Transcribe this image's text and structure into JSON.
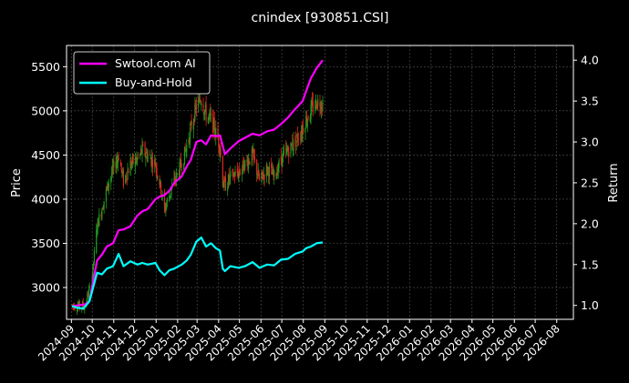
{
  "chart_data": {
    "type": "line",
    "title": "cnindex [930851.CSI]",
    "ylabel_left": "Price",
    "ylabel_right": "Return",
    "ylim_left": [
      2640,
      5740
    ],
    "ylim_right": [
      0.83,
      4.18
    ],
    "yticks_left": [
      3000,
      3500,
      4000,
      4500,
      5000,
      5500
    ],
    "yticks_right": [
      1.0,
      1.5,
      2.0,
      2.5,
      3.0,
      3.5,
      4.0
    ],
    "x_ticks": [
      "2024-09",
      "2024-10",
      "2024-11",
      "2024-12",
      "2025-01",
      "2025-02",
      "2025-03",
      "2025-04",
      "2025-05",
      "2025-06",
      "2025-07",
      "2025-08",
      "2025-09",
      "2025-10",
      "2025-11",
      "2025-12",
      "2026-01",
      "2026-02",
      "2026-03",
      "2026-04",
      "2026-05",
      "2026-06",
      "2026-07",
      "2026-08"
    ],
    "grid": true,
    "legend_position": "top-left",
    "background": "#000000",
    "up_color": "#1f9a1f",
    "down_color": "#e0281e",
    "series": [
      {
        "name": "Swtool.com AI",
        "color": "#ff00ff",
        "axis": "right",
        "points": [
          [
            "2024-09-02",
            0.99
          ],
          [
            "2024-09-10",
            1.0
          ],
          [
            "2024-09-20",
            1.01
          ],
          [
            "2024-09-27",
            1.05
          ],
          [
            "2024-10-08",
            1.55
          ],
          [
            "2024-10-15",
            1.62
          ],
          [
            "2024-10-22",
            1.72
          ],
          [
            "2024-10-31",
            1.76
          ],
          [
            "2024-11-08",
            1.92
          ],
          [
            "2024-11-15",
            1.93
          ],
          [
            "2024-11-25",
            1.97
          ],
          [
            "2024-12-05",
            2.1
          ],
          [
            "2024-12-12",
            2.15
          ],
          [
            "2024-12-20",
            2.18
          ],
          [
            "2024-12-31",
            2.3
          ],
          [
            "2025-01-06",
            2.33
          ],
          [
            "2025-01-13",
            2.35
          ],
          [
            "2025-01-20",
            2.4
          ],
          [
            "2025-01-27",
            2.5
          ],
          [
            "2025-02-07",
            2.58
          ],
          [
            "2025-02-14",
            2.7
          ],
          [
            "2025-02-20",
            2.78
          ],
          [
            "2025-02-28",
            3.0
          ],
          [
            "2025-03-07",
            3.02
          ],
          [
            "2025-03-14",
            2.97
          ],
          [
            "2025-03-21",
            3.08
          ],
          [
            "2025-03-28",
            3.07
          ],
          [
            "2025-04-03",
            3.08
          ],
          [
            "2025-04-07",
            2.95
          ],
          [
            "2025-04-10",
            2.85
          ],
          [
            "2025-04-18",
            2.92
          ],
          [
            "2025-04-30",
            3.01
          ],
          [
            "2025-05-09",
            3.05
          ],
          [
            "2025-05-20",
            3.1
          ],
          [
            "2025-05-30",
            3.08
          ],
          [
            "2025-06-10",
            3.13
          ],
          [
            "2025-06-20",
            3.15
          ],
          [
            "2025-06-30",
            3.22
          ],
          [
            "2025-07-10",
            3.3
          ],
          [
            "2025-07-20",
            3.4
          ],
          [
            "2025-07-31",
            3.5
          ],
          [
            "2025-08-05",
            3.62
          ],
          [
            "2025-08-12",
            3.78
          ],
          [
            "2025-08-20",
            3.9
          ],
          [
            "2025-08-29",
            4.0
          ]
        ]
      },
      {
        "name": "Buy-and-Hold",
        "color": "#00ffff",
        "axis": "right",
        "points": [
          [
            "2024-09-02",
            0.99
          ],
          [
            "2024-09-10",
            0.97
          ],
          [
            "2024-09-18",
            0.96
          ],
          [
            "2024-09-27",
            1.05
          ],
          [
            "2024-10-08",
            1.4
          ],
          [
            "2024-10-15",
            1.38
          ],
          [
            "2024-10-22",
            1.45
          ],
          [
            "2024-10-31",
            1.48
          ],
          [
            "2024-11-08",
            1.63
          ],
          [
            "2024-11-15",
            1.48
          ],
          [
            "2024-11-25",
            1.54
          ],
          [
            "2024-12-05",
            1.5
          ],
          [
            "2024-12-12",
            1.52
          ],
          [
            "2024-12-20",
            1.5
          ],
          [
            "2024-12-31",
            1.52
          ],
          [
            "2025-01-06",
            1.43
          ],
          [
            "2025-01-13",
            1.37
          ],
          [
            "2025-01-20",
            1.43
          ],
          [
            "2025-01-27",
            1.45
          ],
          [
            "2025-02-07",
            1.5
          ],
          [
            "2025-02-14",
            1.55
          ],
          [
            "2025-02-20",
            1.62
          ],
          [
            "2025-02-28",
            1.78
          ],
          [
            "2025-03-07",
            1.83
          ],
          [
            "2025-03-14",
            1.72
          ],
          [
            "2025-03-21",
            1.76
          ],
          [
            "2025-03-28",
            1.7
          ],
          [
            "2025-04-03",
            1.67
          ],
          [
            "2025-04-07",
            1.45
          ],
          [
            "2025-04-10",
            1.42
          ],
          [
            "2025-04-18",
            1.48
          ],
          [
            "2025-04-30",
            1.46
          ],
          [
            "2025-05-09",
            1.48
          ],
          [
            "2025-05-20",
            1.53
          ],
          [
            "2025-05-30",
            1.46
          ],
          [
            "2025-06-10",
            1.5
          ],
          [
            "2025-06-20",
            1.49
          ],
          [
            "2025-06-30",
            1.56
          ],
          [
            "2025-07-10",
            1.57
          ],
          [
            "2025-07-20",
            1.63
          ],
          [
            "2025-07-31",
            1.66
          ],
          [
            "2025-08-05",
            1.7
          ],
          [
            "2025-08-12",
            1.72
          ],
          [
            "2025-08-20",
            1.76
          ],
          [
            "2025-08-29",
            1.77
          ]
        ]
      }
    ],
    "price_waypoints": [
      [
        "2024-09-02",
        2800
      ],
      [
        "2024-09-20",
        2790
      ],
      [
        "2024-09-30",
        3050
      ],
      [
        "2024-10-08",
        3700
      ],
      [
        "2024-10-15",
        3900
      ],
      [
        "2024-10-25",
        4200
      ],
      [
        "2024-11-08",
        4500
      ],
      [
        "2024-11-15",
        4200
      ],
      [
        "2024-11-25",
        4400
      ],
      [
        "2024-12-05",
        4450
      ],
      [
        "2024-12-12",
        4550
      ],
      [
        "2024-12-20",
        4500
      ],
      [
        "2024-12-31",
        4400
      ],
      [
        "2025-01-06",
        4200
      ],
      [
        "2025-01-13",
        3880
      ],
      [
        "2025-01-20",
        4050
      ],
      [
        "2025-01-27",
        4200
      ],
      [
        "2025-02-07",
        4400
      ],
      [
        "2025-02-14",
        4600
      ],
      [
        "2025-02-20",
        4800
      ],
      [
        "2025-02-28",
        5050
      ],
      [
        "2025-03-07",
        5150
      ],
      [
        "2025-03-14",
        4950
      ],
      [
        "2025-03-21",
        4900
      ],
      [
        "2025-03-28",
        4750
      ],
      [
        "2025-04-03",
        4600
      ],
      [
        "2025-04-07",
        4200
      ],
      [
        "2025-04-10",
        4150
      ],
      [
        "2025-04-18",
        4250
      ],
      [
        "2025-04-30",
        4300
      ],
      [
        "2025-05-09",
        4400
      ],
      [
        "2025-05-20",
        4500
      ],
      [
        "2025-05-30",
        4200
      ],
      [
        "2025-06-10",
        4350
      ],
      [
        "2025-06-20",
        4250
      ],
      [
        "2025-06-30",
        4450
      ],
      [
        "2025-07-10",
        4550
      ],
      [
        "2025-07-20",
        4650
      ],
      [
        "2025-07-31",
        4800
      ],
      [
        "2025-08-05",
        4900
      ],
      [
        "2025-08-12",
        5000
      ],
      [
        "2025-08-20",
        5100
      ],
      [
        "2025-08-29",
        5100
      ]
    ],
    "price_start": "2024-09-02",
    "price_end": "2025-08-29"
  }
}
